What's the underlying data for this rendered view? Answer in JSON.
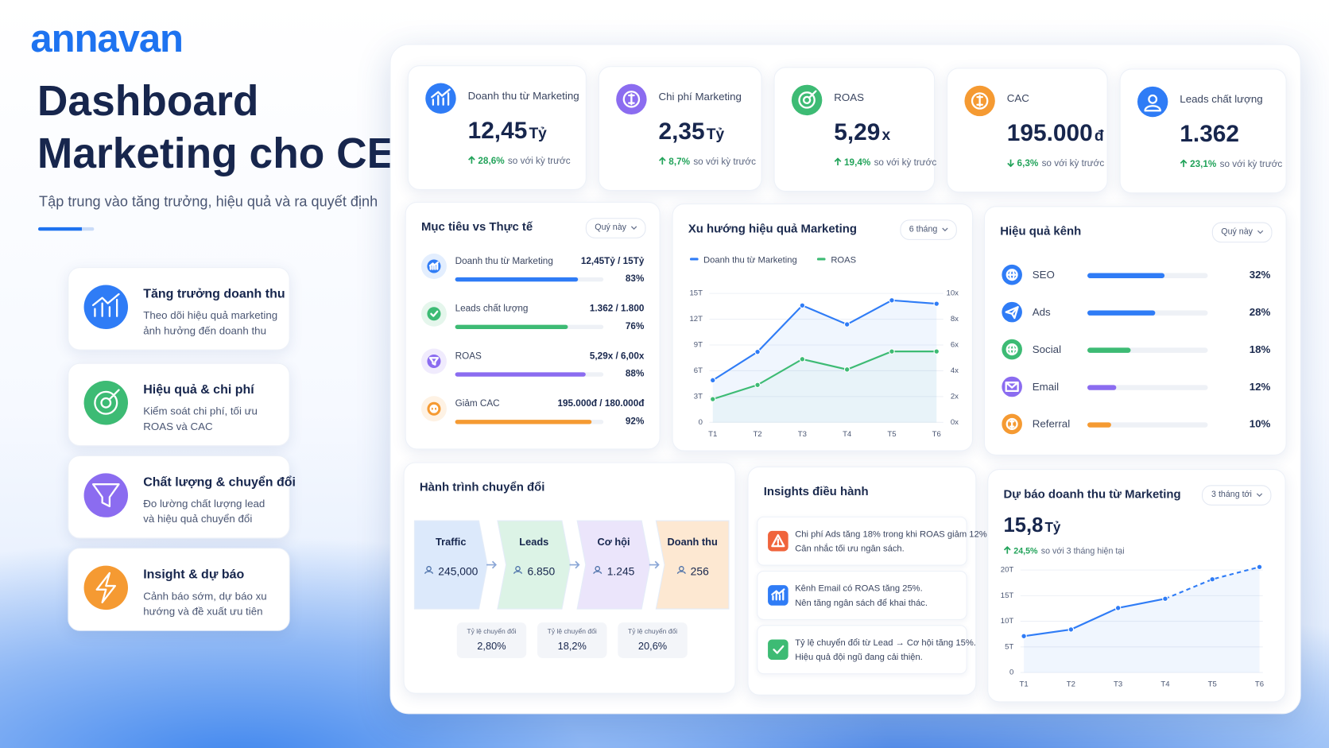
{
  "brand": "annavan",
  "hero": {
    "title_lines": [
      "Dashboard",
      "Marketing cho CEO"
    ],
    "subtitle": "Tập trung vào tăng trưởng, hiệu quả và ra quyết định"
  },
  "features": [
    {
      "title": "Tăng trưởng doanh thu",
      "desc": "Theo dõi hiệu quả marketing ảnh hưởng đến doanh thu",
      "color": "#2f7cf6"
    },
    {
      "title": "Hiệu quả & chi phí",
      "desc": "Kiểm soát chi phí, tối ưu ROAS và CAC",
      "color": "#3dbb74"
    },
    {
      "title": "Chất lượng & chuyển đổi",
      "desc": "Đo lường chất lượng lead và hiệu quả chuyển đổi",
      "color": "#8b6cf0"
    },
    {
      "title": "Insight & dự báo",
      "desc": "Cảnh báo sớm, dự báo xu hướng và đề xuất ưu tiên",
      "color": "#f59a32"
    }
  ],
  "kpis": [
    {
      "label": "Doanh thu từ Marketing",
      "value": "12,45",
      "unit": "Tỷ",
      "change": "28,6%",
      "note": "so với kỳ trước",
      "trend": "up",
      "color": "#2f7cf6"
    },
    {
      "label": "Chi phí Marketing",
      "value": "2,35",
      "unit": "Tỷ",
      "change": "8,7%",
      "note": "so với kỳ trước",
      "trend": "up",
      "color": "#8b6cf0"
    },
    {
      "label": "ROAS",
      "value": "5,29",
      "unit": "x",
      "change": "19,4%",
      "note": "so với kỳ trước",
      "trend": "up",
      "color": "#3dbb74"
    },
    {
      "label": "CAC",
      "value": "195.000",
      "unit": "đ",
      "change": "6,3%",
      "note": "so với kỳ trước",
      "trend": "down",
      "color": "#f59a32"
    },
    {
      "label": "Leads chất lượng",
      "value": "1.362",
      "change": "23,1%",
      "note": "so với kỳ trước",
      "trend": "up",
      "color": "#2f7cf6"
    }
  ],
  "goals": {
    "title": "Mục tiêu vs Thực tế",
    "filter": "Quý này",
    "xlim": [
      0,
      100
    ],
    "items": [
      {
        "label": "Doanh thu từ Marketing",
        "progress": "12,45Tỷ / 15Tỷ",
        "percent": 83,
        "percent_label": "83%",
        "color": "#2f7cf6"
      },
      {
        "label": "Leads chất lượng",
        "progress": "1.362 / 1.800",
        "percent": 76,
        "percent_label": "76%",
        "color": "#3dbb74"
      },
      {
        "label": "ROAS",
        "progress": "5,29x / 6,00x",
        "percent": 88,
        "percent_label": "88%",
        "color": "#8b6cf0"
      },
      {
        "label": "Giảm CAC",
        "progress": "195.000đ / 180.000đ",
        "percent": 92,
        "percent_label": "92%",
        "color": "#f59a32"
      }
    ]
  },
  "trend": {
    "type": "line",
    "title": "Xu hướng hiệu quả Marketing",
    "filter": "6 tháng",
    "categories": [
      "T1",
      "T2",
      "T3",
      "T4",
      "T5",
      "T6"
    ],
    "series": [
      {
        "name": "Doanh thu từ Marketing",
        "color": "#2f7cf6",
        "values": [
          4.9,
          8.2,
          13.6,
          11.4,
          14.2,
          13.8
        ]
      },
      {
        "name": "ROAS",
        "color": "#3dbb74",
        "axis": "y2",
        "values": [
          1.8,
          2.9,
          4.9,
          4.1,
          5.5,
          5.5
        ]
      }
    ],
    "ylim": [
      0,
      15
    ],
    "yticks": [
      0,
      {
        "value": 3,
        "label": "3T"
      },
      {
        "value": 6,
        "label": "6T"
      },
      {
        "value": 9,
        "label": "9T"
      },
      {
        "value": 12,
        "label": "12T"
      },
      {
        "value": 15,
        "label": "15T"
      }
    ],
    "y2lim": [
      0,
      10
    ],
    "y2ticks": [
      {
        "value": 0,
        "label": "0x"
      },
      {
        "value": 2,
        "label": "2x"
      },
      {
        "value": 4,
        "label": "4x"
      },
      {
        "value": 6,
        "label": "6x"
      },
      {
        "value": 8,
        "label": "8x"
      },
      {
        "value": 10,
        "label": "10x"
      }
    ],
    "area": true
  },
  "channels": {
    "type": "bar",
    "orientation": "horizontal",
    "title": "Hiệu quả kênh",
    "filter": "Quý này",
    "categories": [
      "SEO",
      "Ads",
      "Social",
      "Email",
      "Referral"
    ],
    "values": [
      32,
      28,
      18,
      12,
      10
    ],
    "value_labels": [
      "32%",
      "28%",
      "18%",
      "12%",
      "10%"
    ],
    "colors": [
      "#2f7cf6",
      "#2f7cf6",
      "#3dbb74",
      "#8b6cf0",
      "#f59a32"
    ],
    "xlim": [
      0,
      50
    ]
  },
  "funnel": {
    "title": "Hành trình chuyển đổi",
    "stages": [
      {
        "name": "Traffic",
        "value": "245,000",
        "color": "#dce9fb"
      },
      {
        "name": "Leads",
        "value": "6.850",
        "color": "#dcf3e6"
      },
      {
        "name": "Cơ hội",
        "value": "1.245",
        "color": "#ebe5fb"
      },
      {
        "name": "Doanh thu",
        "value": "256",
        "color": "#fde8d2"
      }
    ],
    "rate_label": "Tỷ lệ chuyển đổi",
    "rates": [
      "2,80%",
      "18,2%",
      "20,6%"
    ]
  },
  "insights": {
    "title": "Insights điều hành",
    "items": [
      {
        "lines": [
          "Chi phí Ads tăng 18% trong khi ROAS giảm 12%.",
          "Cân nhắc tối ưu ngân sách."
        ],
        "color": "#f0643c"
      },
      {
        "lines": [
          "Kênh Email có ROAS tăng 25%.",
          "Nên tăng ngân sách để khai thác."
        ],
        "color": "#2f7cf6"
      },
      {
        "lines": [
          "Tỷ lệ chuyển đổi từ Lead → Cơ hội tăng 15%.",
          "Hiệu quả đội ngũ đang cải thiện."
        ],
        "color": "#3dbb74"
      }
    ]
  },
  "forecast": {
    "type": "line",
    "title": "Dự báo doanh thu từ Marketing",
    "filter": "3 tháng tới",
    "value": "15,8",
    "unit": "Tỷ",
    "change": "24,5%",
    "note": "so với 3 tháng hiện tại",
    "categories": [
      "T1",
      "T2",
      "T3",
      "T4",
      "T5",
      "T6"
    ],
    "series": [
      {
        "color": "#2f7cf6",
        "values": [
          7.1,
          8.4,
          12.6,
          14.4,
          null,
          null
        ]
      },
      {
        "color": "#2f7cf6",
        "dashed": true,
        "values": [
          null,
          null,
          null,
          14.4,
          18.2,
          20.6
        ]
      }
    ],
    "ylim": [
      0,
      24
    ],
    "yticks": [
      0,
      {
        "value": 5,
        "label": "5T"
      },
      {
        "value": 10,
        "label": "10T"
      },
      {
        "value": 15,
        "label": "15T"
      },
      {
        "value": 20,
        "label": "20T"
      }
    ],
    "area": true
  }
}
